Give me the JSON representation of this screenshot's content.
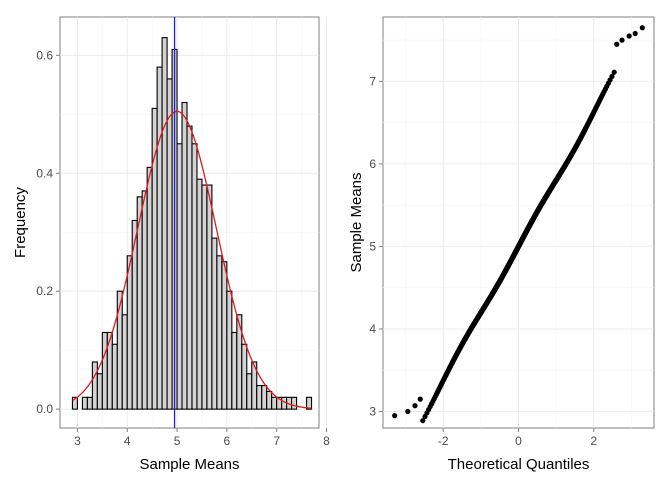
{
  "chart_data": [
    {
      "type": "bar",
      "subtype": "histogram",
      "xlabel": "Sample Means",
      "ylabel": "Frequency",
      "xlim": [
        2.65,
        7.85
      ],
      "ylim": [
        -0.032,
        0.665
      ],
      "xticks": [
        3,
        4,
        5,
        6,
        7,
        8
      ],
      "xtick_labels": [
        "3",
        "4",
        "5",
        "6",
        "7",
        "8"
      ],
      "yticks": [
        0,
        0.2,
        0.4,
        0.6
      ],
      "ytick_labels": [
        "0.0",
        "0.2",
        "0.4",
        "0.6"
      ],
      "grid": true,
      "bin_width": 0.1,
      "bin_start": 2.9,
      "values": [
        0.02,
        0.0,
        0.02,
        0.02,
        0.08,
        0.06,
        0.13,
        0.13,
        0.11,
        0.2,
        0.16,
        0.26,
        0.32,
        0.36,
        0.37,
        0.41,
        0.51,
        0.58,
        0.63,
        0.56,
        0.61,
        0.45,
        0.52,
        0.48,
        0.45,
        0.39,
        0.38,
        0.38,
        0.29,
        0.26,
        0.25,
        0.2,
        0.13,
        0.16,
        0.11,
        0.06,
        0.08,
        0.04,
        0.04,
        0.03,
        0.02,
        0.02,
        0.02,
        0.02,
        0.02,
        0.0,
        0.0,
        0.02
      ],
      "bar_fill": "#d3d3d3",
      "bar_stroke": "#000000",
      "density_curve": {
        "mean": 5.0,
        "sd": 0.79,
        "color": "#e41a1c"
      },
      "vline": {
        "x": 4.95,
        "color": "#2222dd"
      }
    },
    {
      "type": "scatter",
      "subtype": "qq-plot",
      "xlabel": "Theoretical Quantiles",
      "ylabel": "Sample Means",
      "xlim": [
        -3.6,
        3.6
      ],
      "ylim": [
        2.8,
        7.78
      ],
      "xticks": [
        -2,
        0,
        2
      ],
      "xtick_labels": [
        "-2",
        "0",
        "2"
      ],
      "yticks": [
        3,
        4,
        5,
        6,
        7
      ],
      "ytick_labels": [
        "3",
        "4",
        "5",
        "6",
        "7"
      ],
      "grid": true,
      "point_color": "#000000",
      "n_points": 1000,
      "mean": 5.0,
      "sd": 0.79,
      "extremes": {
        "x": [
          -3.29,
          -2.94,
          -2.75,
          -2.61,
          2.61,
          2.75,
          2.94,
          3.1,
          3.29
        ],
        "y": [
          2.95,
          3.0,
          3.07,
          3.15,
          7.45,
          7.5,
          7.55,
          7.58,
          7.65
        ]
      }
    }
  ]
}
